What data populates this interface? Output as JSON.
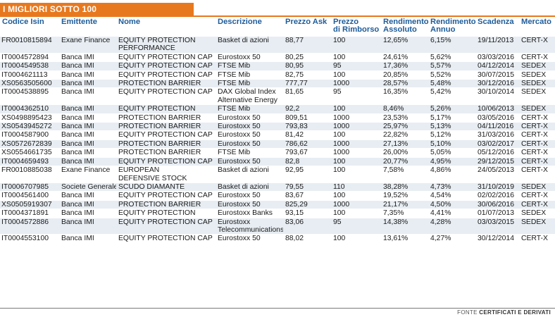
{
  "title": "I MIGLIORI SOTTO 100",
  "headers": {
    "isin": "Codice Isin",
    "emittente": "Emittente",
    "nome": "Nome",
    "descrizione": "Descrizione",
    "ask": "Prezzo Ask",
    "rimborso_1": "Prezzo",
    "rimborso_2": "di Rimborso",
    "assoluto_1": "Rendimento",
    "assoluto_2": "Assoluto",
    "annuo_1": "Rendimento",
    "annuo_2": "Annuo",
    "scadenza": "Scadenza",
    "mercato": "Mercato"
  },
  "rows": [
    {
      "isin": "FR0010815894",
      "emittente": "Exane Finance",
      "nome": "EQUITY PROTECTION",
      "nome2": "PERFORMANCE",
      "descrizione": "Basket di azioni",
      "descrizione2": "",
      "ask": "88,77",
      "rimborso": "100",
      "assoluto": "12,65%",
      "annuo": "6,15%",
      "scadenza": "19/11/2013",
      "mercato": "CERT-X"
    },
    {
      "isin": "IT0004572894",
      "emittente": "Banca IMI",
      "nome": "EQUITY PROTECTION CAP",
      "nome2": "",
      "descrizione": "Eurostoxx 50",
      "descrizione2": "",
      "ask": "80,25",
      "rimborso": "100",
      "assoluto": "24,61%",
      "annuo": "5,62%",
      "scadenza": "03/03/2016",
      "mercato": "CERT-X"
    },
    {
      "isin": "IT0004549538",
      "emittente": "Banca IMI",
      "nome": "EQUITY PROTECTION CAP",
      "nome2": "",
      "descrizione": "FTSE Mib",
      "descrizione2": "",
      "ask": "80,95",
      "rimborso": "95",
      "assoluto": "17,36%",
      "annuo": "5,57%",
      "scadenza": "04/12/2014",
      "mercato": "SEDEX"
    },
    {
      "isin": "IT0004621113",
      "emittente": "Banca IMI",
      "nome": "EQUITY PROTECTION CAP",
      "nome2": "",
      "descrizione": "FTSE Mib",
      "descrizione2": "",
      "ask": "82,75",
      "rimborso": "100",
      "assoluto": "20,85%",
      "annuo": "5,52%",
      "scadenza": "30/07/2015",
      "mercato": "SEDEX"
    },
    {
      "isin": "XS0563505600",
      "emittente": "Banca IMI",
      "nome": "PROTECTION BARRIER",
      "nome2": "",
      "descrizione": "FTSE Mib",
      "descrizione2": "",
      "ask": "777,77",
      "rimborso": "1000",
      "assoluto": "28,57%",
      "annuo": "5,48%",
      "scadenza": "30/12/2016",
      "mercato": "SEDEX"
    },
    {
      "isin": "IT0004538895",
      "emittente": "Banca IMI",
      "nome": "EQUITY PROTECTION CAP",
      "nome2": "",
      "descrizione": "DAX Global Index",
      "descrizione2": "Alternative Energy",
      "ask": "81,65",
      "rimborso": "95",
      "assoluto": "16,35%",
      "annuo": "5,42%",
      "scadenza": "30/10/2014",
      "mercato": "SEDEX"
    },
    {
      "isin": "IT0004362510",
      "emittente": "Banca IMI",
      "nome": "EQUITY PROTECTION",
      "nome2": "",
      "descrizione": "FTSE Mib",
      "descrizione2": "",
      "ask": "92,2",
      "rimborso": "100",
      "assoluto": "8,46%",
      "annuo": "5,26%",
      "scadenza": "10/06/2013",
      "mercato": "SEDEX"
    },
    {
      "isin": "XS0498895423",
      "emittente": "Banca IMI",
      "nome": "PROTECTION BARRIER",
      "nome2": "",
      "descrizione": "Eurostoxx 50",
      "descrizione2": "",
      "ask": "809,51",
      "rimborso": "1000",
      "assoluto": "23,53%",
      "annuo": "5,17%",
      "scadenza": "03/05/2016",
      "mercato": "CERT-X"
    },
    {
      "isin": "XS0543945272",
      "emittente": "Banca IMI",
      "nome": "PROTECTION BARRIER",
      "nome2": "",
      "descrizione": "Eurostoxx 50",
      "descrizione2": "",
      "ask": "793,83",
      "rimborso": "1000",
      "assoluto": "25,97%",
      "annuo": "5,13%",
      "scadenza": "04/11/2016",
      "mercato": "CERT-X"
    },
    {
      "isin": "IT0004587900",
      "emittente": "Banca IMI",
      "nome": "EQUITY PROTECTION CAP",
      "nome2": "",
      "descrizione": "Eurostoxx 50",
      "descrizione2": "",
      "ask": "81,42",
      "rimborso": "100",
      "assoluto": "22,82%",
      "annuo": "5,12%",
      "scadenza": "31/03/2016",
      "mercato": "CERT-X"
    },
    {
      "isin": "XS0572672839",
      "emittente": "Banca IMI",
      "nome": "PROTECTION BARRIER",
      "nome2": "",
      "descrizione": "Eurostoxx 50",
      "descrizione2": "",
      "ask": "786,62",
      "rimborso": "1000",
      "assoluto": "27,13%",
      "annuo": "5,10%",
      "scadenza": "03/02/2017",
      "mercato": "CERT-X"
    },
    {
      "isin": "XS0554661735",
      "emittente": "Banca IMI",
      "nome": "PROTECTION BARRIER",
      "nome2": "",
      "descrizione": "FTSE Mib",
      "descrizione2": "",
      "ask": "793,67",
      "rimborso": "1000",
      "assoluto": "26,00%",
      "annuo": "5,05%",
      "scadenza": "05/12/2016",
      "mercato": "CERT-X"
    },
    {
      "isin": "IT0004659493",
      "emittente": "Banca IMI",
      "nome": "EQUITY PROTECTION CAP",
      "nome2": "",
      "descrizione": "Eurostoxx 50",
      "descrizione2": "",
      "ask": "82,8",
      "rimborso": "100",
      "assoluto": "20,77%",
      "annuo": "4,95%",
      "scadenza": "29/12/2015",
      "mercato": "CERT-X"
    },
    {
      "isin": "FR0010885038",
      "emittente": "Exane Finance",
      "nome": "EUROPEAN",
      "nome2": "DEFENSIVE STOCK",
      "descrizione": "Basket di azioni",
      "descrizione2": "",
      "ask": "92,95",
      "rimborso": "100",
      "assoluto": "7,58%",
      "annuo": "4,86%",
      "scadenza": "24/05/2013",
      "mercato": "CERT-X"
    },
    {
      "isin": "IT0006707985",
      "emittente": "Societe Generale",
      "nome": "SCUDO DIAMANTE",
      "nome2": "",
      "descrizione": "Basket di azioni",
      "descrizione2": "",
      "ask": "79,55",
      "rimborso": "110",
      "assoluto": "38,28%",
      "annuo": "4,73%",
      "scadenza": "31/10/2019",
      "mercato": "SEDEX"
    },
    {
      "isin": "IT0004561400",
      "emittente": "Banca IMI",
      "nome": "EQUITY PROTECTION CAP",
      "nome2": "",
      "descrizione": "Eurostoxx 50",
      "descrizione2": "",
      "ask": "83,67",
      "rimborso": "100",
      "assoluto": "19,52%",
      "annuo": "4,54%",
      "scadenza": "02/02/2016",
      "mercato": "CERT-X"
    },
    {
      "isin": "XS0505919307",
      "emittente": "Banca IMI",
      "nome": "PROTECTION BARRIER",
      "nome2": "",
      "descrizione": "Eurostoxx 50",
      "descrizione2": "",
      "ask": "825,29",
      "rimborso": "1000",
      "assoluto": "21,17%",
      "annuo": "4,50%",
      "scadenza": "30/06/2016",
      "mercato": "CERT-X"
    },
    {
      "isin": "IT0004371891",
      "emittente": "Banca IMI",
      "nome": "EQUITY PROTECTION",
      "nome2": "",
      "descrizione": "Eurostoxx Banks",
      "descrizione2": "",
      "ask": "93,15",
      "rimborso": "100",
      "assoluto": "7,35%",
      "annuo": "4,41%",
      "scadenza": "01/07/2013",
      "mercato": "SEDEX"
    },
    {
      "isin": "IT0004572886",
      "emittente": "Banca IMI",
      "nome": "EQUITY PROTECTION CAP",
      "nome2": "",
      "descrizione": "Eurostoxx",
      "descrizione2": "Telecommunications",
      "ask": "83,06",
      "rimborso": "95",
      "assoluto": "14,38%",
      "annuo": "4,28%",
      "scadenza": "03/03/2015",
      "mercato": "SEDEX"
    },
    {
      "isin": "IT0004553100",
      "emittente": "Banca IMI",
      "nome": "EQUITY PROTECTION CAP",
      "nome2": "",
      "descrizione": "Eurostoxx 50",
      "descrizione2": "",
      "ask": "88,02",
      "rimborso": "100",
      "assoluto": "13,61%",
      "annuo": "4,27%",
      "scadenza": "30/12/2014",
      "mercato": "CERT-X"
    }
  ],
  "footer": {
    "prefix": "FONTE",
    "source": "CERTIFICATI E DERIVATI"
  }
}
